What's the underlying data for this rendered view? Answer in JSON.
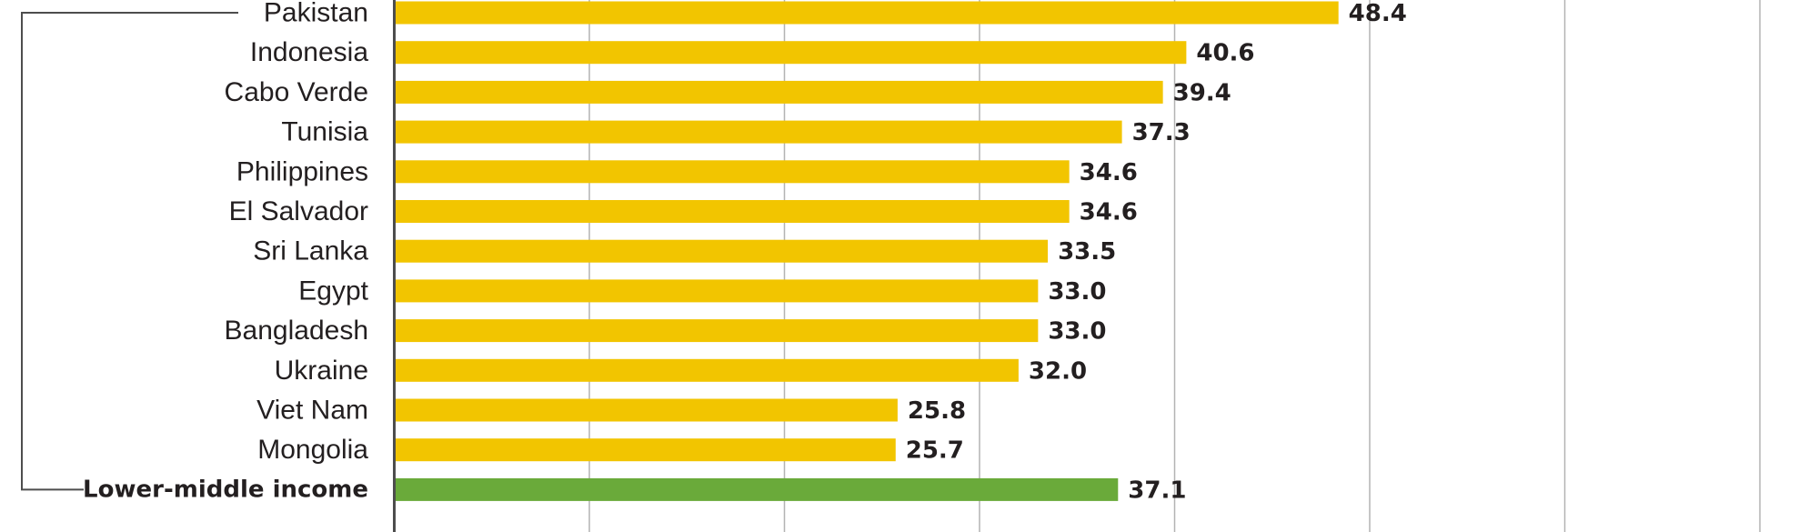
{
  "chart_data": {
    "type": "bar",
    "orientation": "horizontal",
    "categories": [
      "Pakistan",
      "Indonesia",
      "Cabo Verde",
      "Tunisia",
      "Philippines",
      "El Salvador",
      "Sri Lanka",
      "Egypt",
      "Bangladesh",
      "Ukraine",
      "Viet Nam",
      "Mongolia",
      "Lower-middle income"
    ],
    "values": [
      48.4,
      40.6,
      39.4,
      37.3,
      34.6,
      34.6,
      33.5,
      33.0,
      33.0,
      32.0,
      25.8,
      25.7,
      37.1
    ],
    "value_labels": [
      "48.4",
      "40.6",
      "39.4",
      "37.3",
      "34.6",
      "34.6",
      "33.5",
      "33.0",
      "33.0",
      "32.0",
      "25.8",
      "25.7",
      "37.1"
    ],
    "group_label": "Lower-middle income",
    "title": "",
    "xlabel": "",
    "ylabel": "",
    "xlim": [
      0,
      70
    ],
    "gridline_step": 10,
    "grid": true,
    "colors": {
      "country_bar": "#f2c500",
      "group_bar": "#6aaa3a",
      "gridline": "#b3b3b3",
      "axis": "#4d4d4d",
      "bracket": "#4d4d4d",
      "text": "#231f20"
    }
  }
}
